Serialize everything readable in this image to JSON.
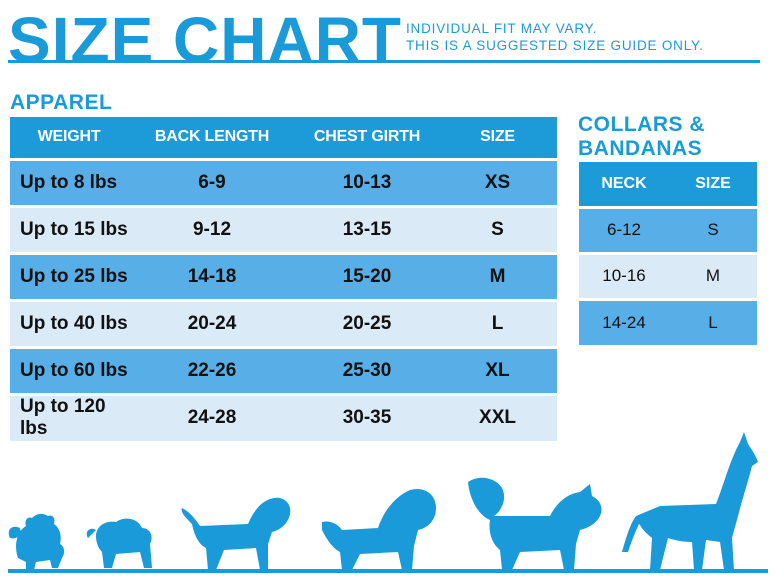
{
  "header": {
    "title": "SIZE CHART",
    "subtitle_line1": "INDIVIDUAL FIT MAY VARY.",
    "subtitle_line2": "THIS IS A SUGGESTED SIZE GUIDE ONLY."
  },
  "apparel": {
    "title": "APPAREL",
    "columns": [
      "WEIGHT",
      "BACK LENGTH",
      "CHEST GIRTH",
      "SIZE"
    ],
    "rows": [
      [
        "Up to 8 lbs",
        "6-9",
        "10-13",
        "XS"
      ],
      [
        "Up to 15 lbs",
        "9-12",
        "13-15",
        "S"
      ],
      [
        "Up to 25 lbs",
        "14-18",
        "15-20",
        "M"
      ],
      [
        "Up to 40 lbs",
        "20-24",
        "20-25",
        "L"
      ],
      [
        "Up to 60 lbs",
        "22-26",
        "25-30",
        "XL"
      ],
      [
        "Up to 120 lbs",
        "24-28",
        "30-35",
        "XXL"
      ]
    ]
  },
  "collars": {
    "title_line1": "COLLARS &",
    "title_line2": "BANDANAS",
    "columns": [
      "NECK",
      "SIZE"
    ],
    "rows": [
      [
        "6-12",
        "S"
      ],
      [
        "10-16",
        "M"
      ],
      [
        "14-24",
        "L"
      ]
    ]
  },
  "colors": {
    "brand_blue": "#1a9ad9",
    "row_dark": "#58aee6",
    "row_light": "#daeaf7"
  },
  "illustration": {
    "icons": [
      "pomeranian-icon",
      "pug-icon",
      "beagle-icon",
      "spaniel-icon",
      "husky-icon",
      "great-dane-icon"
    ]
  }
}
